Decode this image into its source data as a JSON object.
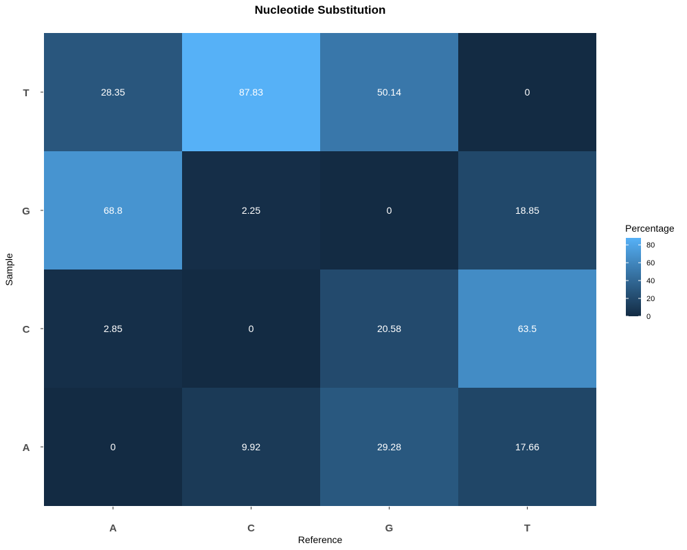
{
  "chart_data": {
    "type": "heatmap",
    "title": "Nucleotide Substitution",
    "xlabel": "Reference",
    "ylabel": "Sample",
    "x_categories": [
      "A",
      "C",
      "G",
      "T"
    ],
    "y_categories": [
      "A",
      "C",
      "G",
      "T"
    ],
    "values": [
      [
        0,
        9.92,
        29.28,
        17.66
      ],
      [
        2.85,
        0,
        20.58,
        63.5
      ],
      [
        68.8,
        2.25,
        0,
        18.85
      ],
      [
        28.35,
        87.83,
        50.14,
        0
      ]
    ],
    "legend": {
      "title": "Percentage",
      "ticks": [
        0,
        20,
        40,
        60,
        80
      ],
      "range": [
        0,
        87.83
      ],
      "low_color": "#132B43",
      "high_color": "#56B1F7",
      "placement": "right"
    },
    "grid": false
  }
}
